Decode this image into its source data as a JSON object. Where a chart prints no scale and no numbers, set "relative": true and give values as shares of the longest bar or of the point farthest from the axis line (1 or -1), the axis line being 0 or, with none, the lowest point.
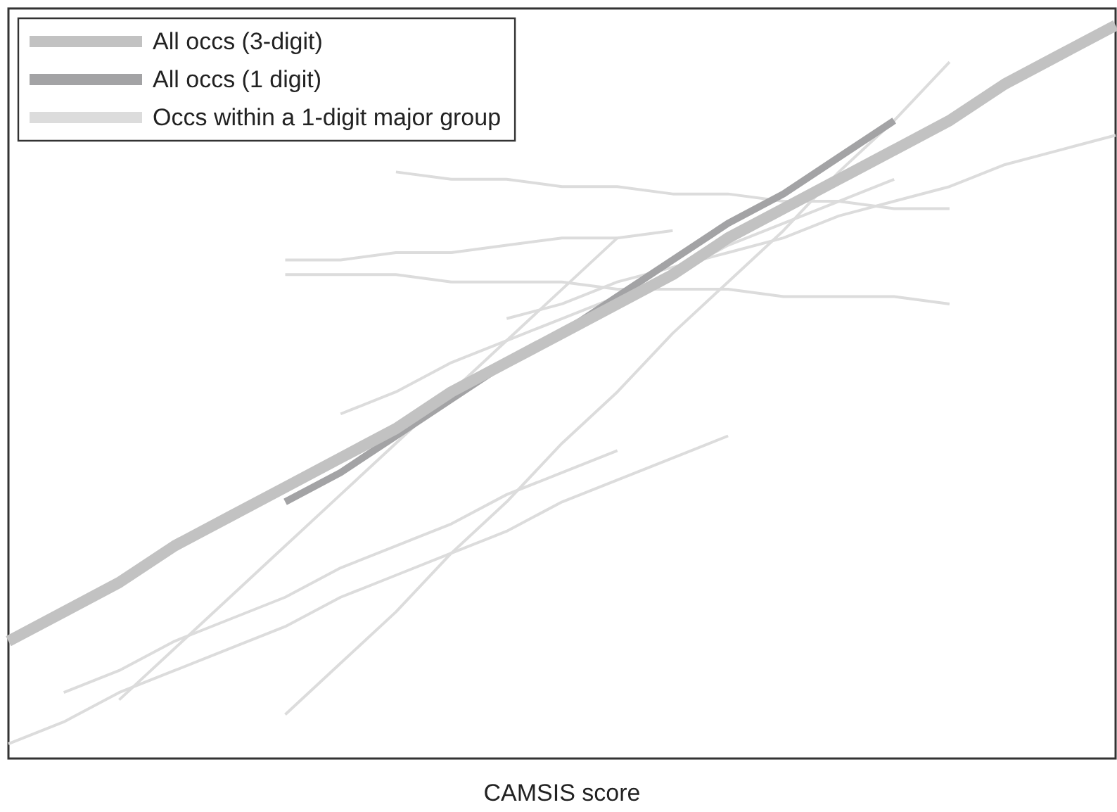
{
  "chart_data": {
    "type": "line",
    "relative": true,
    "xlabel": "CAMSIS score",
    "legend": "top left",
    "marker": "none",
    "line_style": "solid",
    "categories": [
      null,
      null,
      null,
      null,
      null,
      null,
      null,
      null,
      null,
      null,
      null,
      null,
      null,
      null,
      null,
      null,
      null,
      null,
      null,
      null,
      null
    ],
    "series": [
      {
        "name": "All occs (3-digit)",
        "color": "#c2c2c2",
        "values": [
          0.16,
          0.2,
          0.24,
          0.29,
          0.33,
          0.37,
          0.41,
          0.45,
          0.5,
          0.54,
          0.58,
          0.62,
          0.66,
          0.71,
          0.75,
          0.79,
          0.83,
          0.87,
          0.92,
          0.96,
          1.0
        ]
      },
      {
        "name": "All occs (1 digit)",
        "color": "#a3a3a5",
        "values": [
          null,
          null,
          null,
          null,
          null,
          0.35,
          0.39,
          0.44,
          0.49,
          0.54,
          0.58,
          0.63,
          0.68,
          0.73,
          0.77,
          0.82,
          0.87,
          null,
          null,
          null,
          null
        ]
      },
      {
        "name": "Occs within a 1-digit major group",
        "color": "#dcdcdc",
        "values": [
          null,
          null,
          null,
          null,
          null,
          null,
          null,
          0.8,
          0.79,
          0.79,
          0.78,
          0.78,
          0.77,
          0.77,
          0.76,
          0.76,
          0.75,
          0.75,
          null,
          null,
          null
        ]
      },
      {
        "color": "#dcdcdc",
        "values": [
          null,
          null,
          null,
          null,
          null,
          0.68,
          0.68,
          0.69,
          0.69,
          0.7,
          0.71,
          0.71,
          0.72,
          null,
          null,
          null,
          null,
          null,
          null,
          null,
          null
        ]
      },
      {
        "color": "#dcdcdc",
        "values": [
          null,
          null,
          null,
          null,
          null,
          0.66,
          0.66,
          0.66,
          0.65,
          0.65,
          0.65,
          0.64,
          0.64,
          0.64,
          0.63,
          0.63,
          0.63,
          0.62,
          null,
          null,
          null
        ]
      },
      {
        "color": "#dcdcdc",
        "values": [
          null,
          null,
          null,
          null,
          null,
          null,
          0.47,
          0.5,
          0.54,
          0.57,
          0.6,
          0.63,
          0.66,
          0.7,
          0.73,
          0.76,
          0.79,
          null,
          null,
          null,
          null
        ]
      },
      {
        "color": "#dcdcdc",
        "values": [
          null,
          null,
          null,
          null,
          null,
          null,
          null,
          null,
          null,
          0.6,
          0.62,
          0.65,
          0.67,
          0.69,
          0.71,
          0.74,
          0.76,
          0.78,
          0.81,
          0.83,
          0.85
        ]
      },
      {
        "color": "#dcdcdc",
        "values": [
          null,
          0.09,
          0.12,
          0.16,
          0.19,
          0.22,
          0.26,
          0.29,
          0.32,
          0.36,
          0.39,
          0.42,
          null,
          null,
          null,
          null,
          null,
          null,
          null,
          null,
          null
        ]
      },
      {
        "color": "#dcdcdc",
        "values": [
          0.02,
          0.05,
          0.09,
          0.12,
          0.15,
          0.18,
          0.22,
          0.25,
          0.28,
          0.31,
          0.35,
          0.38,
          0.41,
          0.44,
          null,
          null,
          null,
          null,
          null,
          null,
          null
        ]
      },
      {
        "color": "#dcdcdc",
        "values": [
          null,
          null,
          0.08,
          0.15,
          0.22,
          0.29,
          0.36,
          0.43,
          0.5,
          0.57,
          0.64,
          0.71,
          null,
          null,
          null,
          null,
          null,
          null,
          null,
          null,
          null
        ]
      },
      {
        "color": "#dcdcdc",
        "values": [
          null,
          null,
          null,
          null,
          null,
          0.06,
          0.13,
          0.2,
          0.28,
          0.35,
          0.43,
          0.5,
          0.58,
          0.65,
          0.72,
          0.8,
          0.87,
          0.95,
          null,
          null,
          null
        ]
      }
    ]
  }
}
